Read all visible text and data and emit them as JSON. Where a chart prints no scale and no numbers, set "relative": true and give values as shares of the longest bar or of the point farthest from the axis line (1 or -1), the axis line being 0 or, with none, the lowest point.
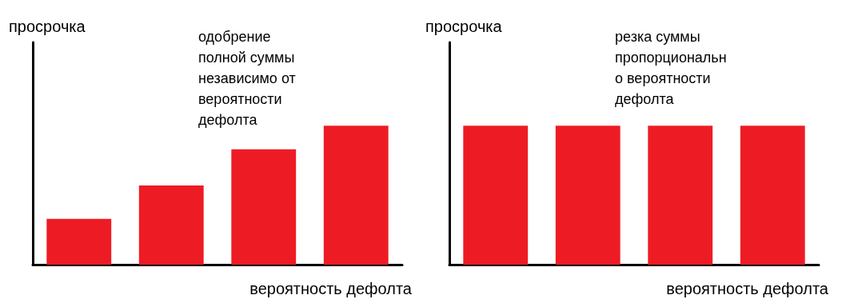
{
  "chart_data": [
    {
      "type": "bar",
      "relative": true,
      "ylabel": "просрочка",
      "xlabel": "вероятность дефолта",
      "annotations": [
        "одобрение полной суммы независимо от вероятности дефолта"
      ],
      "categories": [
        null,
        null,
        null,
        null
      ],
      "values": [
        0.33,
        0.57,
        0.83,
        1
      ],
      "color": "#ed1c24",
      "grid": false
    },
    {
      "type": "bar",
      "relative": true,
      "ylabel": "просрочка",
      "xlabel": "вероятность дефолта",
      "annotations": [
        "резка суммы пропорционально вероятности дефолта"
      ],
      "categories": [
        null,
        null,
        null,
        null
      ],
      "values": [
        1,
        1,
        1,
        1
      ],
      "color": "#ed1c24",
      "grid": false
    }
  ]
}
